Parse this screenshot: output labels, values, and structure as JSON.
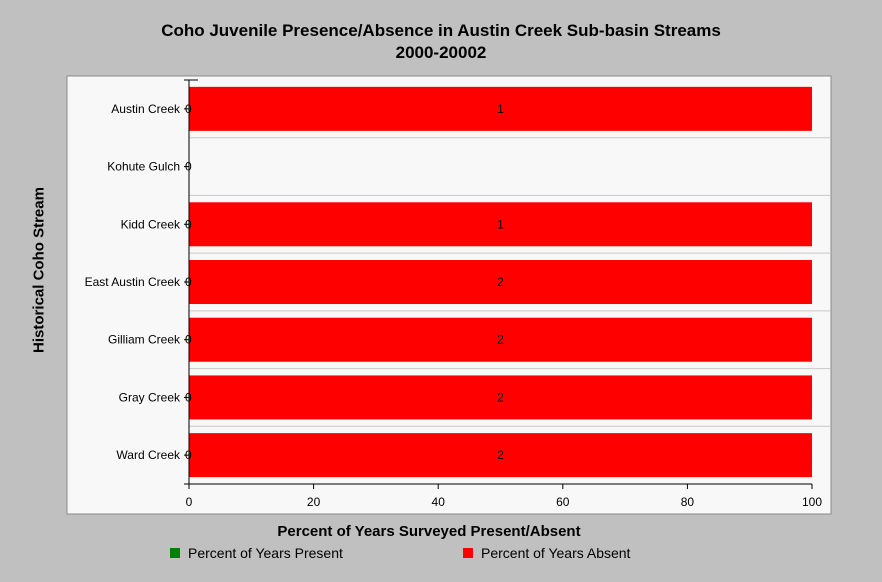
{
  "title_lines": [
    "Coho Juvenile Presence/Absence in Austin Creek Sub-basin Streams",
    "2000-20002"
  ],
  "chart_data": {
    "type": "bar",
    "orientation": "horizontal",
    "stacked": true,
    "title": "Coho Juvenile Presence/Absence in Austin Creek Sub-basin Streams 2000-20002",
    "xlabel": "Percent of Years Surveyed Present/Absent",
    "ylabel": "Historical Coho Stream",
    "xlim": [
      0,
      100
    ],
    "xticks": [
      "0",
      "20",
      "40",
      "60",
      "80",
      "100"
    ],
    "categories": [
      "Austin Creek",
      "Kohute Gulch",
      "Kidd Creek",
      "East Austin Creek",
      "Gilliam Creek",
      "Gray Creek",
      "Ward Creek"
    ],
    "series": [
      {
        "name": "Percent of Years Present",
        "color": "#008000",
        "values": [
          0,
          0,
          0,
          0,
          0,
          0,
          0
        ],
        "labels": [
          "0",
          "0",
          "0",
          "0",
          "0",
          "0",
          "0"
        ]
      },
      {
        "name": "Percent of Years Absent",
        "color": "#ff0000",
        "values": [
          100,
          0,
          100,
          100,
          100,
          100,
          100
        ],
        "labels": [
          "1",
          "",
          "1",
          "2",
          "2",
          "2",
          "2"
        ]
      }
    ],
    "grid": {
      "horizontal": true,
      "vertical": false
    },
    "legend_position": "bottom"
  }
}
